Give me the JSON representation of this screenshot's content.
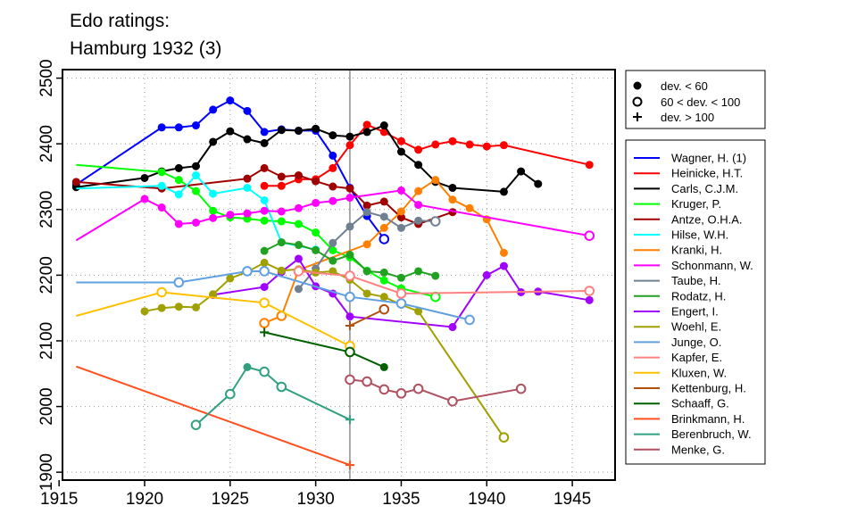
{
  "chart_data": {
    "type": "line",
    "title_lines": [
      "Edo ratings:",
      "Hamburg 1932 (3)"
    ],
    "xlim": [
      1915.2,
      1947.5
    ],
    "ylim": [
      1888,
      2513
    ],
    "xticks": [
      1915,
      1920,
      1925,
      1930,
      1935,
      1940,
      1945
    ],
    "yticks": [
      1900,
      2000,
      2100,
      2200,
      2300,
      2400,
      2500
    ],
    "event_year": 1932,
    "grid": "dotted",
    "marker_legend": [
      {
        "label": "dev. < 60",
        "marker": "filled"
      },
      {
        "label": "60 < dev. < 100",
        "marker": "open"
      },
      {
        "label": "dev. > 100",
        "marker": "plus"
      }
    ],
    "series": [
      {
        "name": "Wagner, H. (1)",
        "color": "#0000ff",
        "points": [
          [
            1916,
            2338,
            "f"
          ],
          [
            1921,
            2425,
            "f"
          ],
          [
            1922,
            2425,
            "f"
          ],
          [
            1923,
            2428,
            "f"
          ],
          [
            1924,
            2452,
            "f"
          ],
          [
            1925,
            2466,
            "f"
          ],
          [
            1926,
            2450,
            "f"
          ],
          [
            1927,
            2418,
            "f"
          ],
          [
            1928,
            2422,
            "f"
          ],
          [
            1929,
            2420,
            "f"
          ],
          [
            1930,
            2420,
            "f"
          ],
          [
            1931,
            2382,
            "f"
          ],
          [
            1932,
            2333,
            "f"
          ],
          [
            1933,
            2290,
            "f"
          ],
          [
            1934,
            2255,
            "o"
          ]
        ]
      },
      {
        "name": "Heinicke, H.T.",
        "color": "#ff0000",
        "points": [
          [
            1927,
            2336,
            "f"
          ],
          [
            1928,
            2336,
            "f"
          ],
          [
            1929,
            2346,
            "f"
          ],
          [
            1930,
            2346,
            "f"
          ],
          [
            1931,
            2363,
            "f"
          ],
          [
            1932,
            2398,
            "f"
          ],
          [
            1933,
            2429,
            "f"
          ],
          [
            1934,
            2418,
            "f"
          ],
          [
            1935,
            2404,
            "f"
          ],
          [
            1936,
            2391,
            "f"
          ],
          [
            1937,
            2399,
            "f"
          ],
          [
            1938,
            2404,
            "f"
          ],
          [
            1939,
            2399,
            "f"
          ],
          [
            1940,
            2396,
            "f"
          ],
          [
            1941,
            2398,
            "f"
          ],
          [
            1946,
            2368,
            "f"
          ]
        ]
      },
      {
        "name": "Carls, C.J.M.",
        "color": "#000000",
        "points": [
          [
            1916,
            2334,
            "f"
          ],
          [
            1920,
            2348,
            "f"
          ],
          [
            1921,
            2358,
            "f"
          ],
          [
            1922,
            2363,
            "f"
          ],
          [
            1923,
            2366,
            "f"
          ],
          [
            1924,
            2403,
            "f"
          ],
          [
            1925,
            2419,
            "f"
          ],
          [
            1926,
            2407,
            "f"
          ],
          [
            1927,
            2401,
            "f"
          ],
          [
            1928,
            2421,
            "f"
          ],
          [
            1929,
            2420,
            "f"
          ],
          [
            1930,
            2423,
            "f"
          ],
          [
            1931,
            2413,
            "f"
          ],
          [
            1932,
            2411,
            "f"
          ],
          [
            1933,
            2418,
            "f"
          ],
          [
            1934,
            2428,
            "f"
          ],
          [
            1935,
            2388,
            "f"
          ],
          [
            1936,
            2368,
            "f"
          ],
          [
            1937,
            2342,
            "f"
          ],
          [
            1938,
            2333,
            "f"
          ],
          [
            1941,
            2327,
            "f"
          ],
          [
            1942,
            2358,
            "f"
          ],
          [
            1943,
            2339,
            "f"
          ]
        ]
      },
      {
        "name": "Kruger, P.",
        "color": "#00ff00",
        "points": [
          [
            1916,
            2368,
            "n"
          ],
          [
            1921,
            2357,
            "f"
          ],
          [
            1922,
            2345,
            "f"
          ],
          [
            1923,
            2328,
            "f"
          ],
          [
            1924,
            2298,
            "f"
          ],
          [
            1925,
            2288,
            "f"
          ],
          [
            1926,
            2286,
            "f"
          ],
          [
            1927,
            2283,
            "f"
          ],
          [
            1928,
            2282,
            "f"
          ],
          [
            1929,
            2278,
            "f"
          ],
          [
            1930,
            2265,
            "f"
          ],
          [
            1931,
            2238,
            "f"
          ],
          [
            1932,
            2227,
            "f"
          ],
          [
            1933,
            2207,
            "f"
          ],
          [
            1934,
            2192,
            "f"
          ],
          [
            1935,
            2180,
            "f"
          ],
          [
            1937,
            2167,
            "o"
          ]
        ]
      },
      {
        "name": "Antze, O.H.A.",
        "color": "#a00000",
        "points": [
          [
            1916,
            2342,
            "f"
          ],
          [
            1921,
            2332,
            "f"
          ],
          [
            1926,
            2347,
            "f"
          ],
          [
            1927,
            2363,
            "f"
          ],
          [
            1928,
            2350,
            "f"
          ],
          [
            1929,
            2352,
            "f"
          ],
          [
            1930,
            2343,
            "f"
          ],
          [
            1931,
            2335,
            "f"
          ],
          [
            1932,
            2332,
            "f"
          ],
          [
            1933,
            2306,
            "f"
          ],
          [
            1934,
            2312,
            "f"
          ],
          [
            1935,
            2288,
            "f"
          ],
          [
            1936,
            2278,
            "f"
          ],
          [
            1938,
            2296,
            "f"
          ]
        ]
      },
      {
        "name": "Hilse, W.H.",
        "color": "#00ffff",
        "points": [
          [
            1916,
            2332,
            "n"
          ],
          [
            1921,
            2336,
            "f"
          ],
          [
            1922,
            2323,
            "f"
          ],
          [
            1923,
            2352,
            "f"
          ],
          [
            1924,
            2324,
            "f"
          ],
          [
            1926,
            2333,
            "f"
          ],
          [
            1927,
            2314,
            "f"
          ],
          [
            1928,
            2250,
            "f"
          ],
          [
            1930,
            2239,
            "f"
          ]
        ]
      },
      {
        "name": "Kranki, H.",
        "color": "#ff8000",
        "points": [
          [
            1927,
            2127,
            "o"
          ],
          [
            1928,
            2138,
            "o"
          ],
          [
            1929,
            2208,
            "f"
          ],
          [
            1933,
            2247,
            "f"
          ],
          [
            1934,
            2272,
            "f"
          ],
          [
            1935,
            2297,
            "f"
          ],
          [
            1936,
            2328,
            "f"
          ],
          [
            1937,
            2345,
            "f"
          ],
          [
            1938,
            2315,
            "f"
          ],
          [
            1939,
            2302,
            "f"
          ],
          [
            1940,
            2285,
            "f"
          ],
          [
            1941,
            2234,
            "f"
          ]
        ]
      },
      {
        "name": "Schonmann, W.",
        "color": "#ff00ff",
        "points": [
          [
            1916,
            2253,
            "n"
          ],
          [
            1920,
            2316,
            "f"
          ],
          [
            1921,
            2303,
            "f"
          ],
          [
            1922,
            2278,
            "f"
          ],
          [
            1923,
            2280,
            "f"
          ],
          [
            1924,
            2287,
            "f"
          ],
          [
            1925,
            2292,
            "f"
          ],
          [
            1926,
            2294,
            "f"
          ],
          [
            1927,
            2298,
            "f"
          ],
          [
            1928,
            2297,
            "f"
          ],
          [
            1929,
            2302,
            "f"
          ],
          [
            1930,
            2310,
            "f"
          ],
          [
            1931,
            2313,
            "f"
          ],
          [
            1932,
            2318,
            "f"
          ],
          [
            1935,
            2329,
            "f"
          ],
          [
            1936,
            2307,
            "f"
          ],
          [
            1946,
            2260,
            "o"
          ]
        ]
      },
      {
        "name": "Taube, H.",
        "color": "#708090",
        "points": [
          [
            1929,
            2179,
            "f"
          ],
          [
            1930,
            2210,
            "f"
          ],
          [
            1931,
            2249,
            "f"
          ],
          [
            1932,
            2274,
            "f"
          ],
          [
            1933,
            2296,
            "f"
          ],
          [
            1934,
            2289,
            "f"
          ],
          [
            1935,
            2272,
            "f"
          ],
          [
            1936,
            2283,
            "f"
          ],
          [
            1937,
            2282,
            "o"
          ]
        ]
      },
      {
        "name": "Rodatz, H.",
        "color": "#22a022",
        "points": [
          [
            1927,
            2237,
            "f"
          ],
          [
            1928,
            2250,
            "f"
          ],
          [
            1929,
            2246,
            "f"
          ],
          [
            1930,
            2238,
            "f"
          ],
          [
            1931,
            2222,
            "f"
          ],
          [
            1932,
            2231,
            "f"
          ],
          [
            1933,
            2206,
            "f"
          ],
          [
            1934,
            2204,
            "f"
          ],
          [
            1935,
            2196,
            "f"
          ],
          [
            1936,
            2206,
            "f"
          ],
          [
            1937,
            2199,
            "f"
          ]
        ]
      },
      {
        "name": "Engert, I.",
        "color": "#a000ff",
        "points": [
          [
            1924,
            2170,
            "f"
          ],
          [
            1927,
            2182,
            "f"
          ],
          [
            1928,
            2205,
            "f"
          ],
          [
            1929,
            2225,
            "f"
          ],
          [
            1930,
            2183,
            "f"
          ],
          [
            1931,
            2172,
            "f"
          ],
          [
            1932,
            2137,
            "f"
          ],
          [
            1938,
            2121,
            "f"
          ],
          [
            1940,
            2200,
            "f"
          ],
          [
            1941,
            2214,
            "f"
          ],
          [
            1942,
            2174,
            "f"
          ],
          [
            1943,
            2175,
            "f"
          ],
          [
            1946,
            2162,
            "f"
          ]
        ]
      },
      {
        "name": "Woehl, E.",
        "color": "#a0a000",
        "points": [
          [
            1920,
            2145,
            "f"
          ],
          [
            1921,
            2150,
            "f"
          ],
          [
            1922,
            2152,
            "f"
          ],
          [
            1923,
            2151,
            "f"
          ],
          [
            1924,
            2171,
            "f"
          ],
          [
            1925,
            2195,
            "f"
          ],
          [
            1926,
            2205,
            "f"
          ],
          [
            1927,
            2219,
            "f"
          ],
          [
            1928,
            2207,
            "f"
          ],
          [
            1929,
            2209,
            "f"
          ],
          [
            1930,
            2204,
            "f"
          ],
          [
            1931,
            2206,
            "f"
          ],
          [
            1932,
            2193,
            "f"
          ],
          [
            1933,
            2172,
            "f"
          ],
          [
            1934,
            2167,
            "f"
          ],
          [
            1935,
            2155,
            "f"
          ],
          [
            1936,
            2145,
            "f"
          ],
          [
            1941,
            1953,
            "o"
          ]
        ]
      },
      {
        "name": "Junge, O.",
        "color": "#60a0e0",
        "points": [
          [
            1916,
            2189,
            "n"
          ],
          [
            1922,
            2189,
            "o"
          ],
          [
            1926,
            2206,
            "o"
          ],
          [
            1927,
            2206,
            "o"
          ],
          [
            1932,
            2167,
            "o"
          ],
          [
            1935,
            2157,
            "o"
          ],
          [
            1939,
            2132,
            "o"
          ]
        ]
      },
      {
        "name": "Kapfer, E.",
        "color": "#ff8080",
        "points": [
          [
            1929,
            2206,
            "o"
          ],
          [
            1932,
            2199,
            "o"
          ],
          [
            1935,
            2172,
            "o"
          ],
          [
            1946,
            2176,
            "o"
          ]
        ]
      },
      {
        "name": "Kluxen, W.",
        "color": "#ffc000",
        "points": [
          [
            1916,
            2138,
            "n"
          ],
          [
            1921,
            2174,
            "o"
          ],
          [
            1927,
            2158,
            "o"
          ],
          [
            1932,
            2092,
            "o"
          ]
        ]
      },
      {
        "name": "Kettenburg, H.",
        "color": "#b05010",
        "points": [
          [
            1932,
            2123,
            "p"
          ],
          [
            1934,
            2148,
            "o"
          ]
        ]
      },
      {
        "name": "Schaaff, G.",
        "color": "#006000",
        "points": [
          [
            1927,
            2113,
            "p"
          ],
          [
            1932,
            2083,
            "o"
          ],
          [
            1934,
            2060,
            "f"
          ]
        ]
      },
      {
        "name": "Brinkmann, H.",
        "color": "#ff5020",
        "points": [
          [
            1916,
            2061,
            "n"
          ],
          [
            1932,
            1911,
            "p"
          ]
        ]
      },
      {
        "name": "Berenbruch, W.",
        "color": "#30a080",
        "points": [
          [
            1923,
            1972,
            "o"
          ],
          [
            1925,
            2019,
            "o"
          ],
          [
            1926,
            2060,
            "f"
          ],
          [
            1927,
            2053,
            "o"
          ],
          [
            1928,
            2030,
            "o"
          ],
          [
            1932,
            1980,
            "p"
          ]
        ]
      },
      {
        "name": "Menke, G.",
        "color": "#b05060",
        "points": [
          [
            1932,
            2041,
            "o"
          ],
          [
            1933,
            2038,
            "o"
          ],
          [
            1934,
            2026,
            "o"
          ],
          [
            1935,
            2020,
            "o"
          ],
          [
            1936,
            2027,
            "o"
          ],
          [
            1938,
            2008,
            "o"
          ],
          [
            1942,
            2027,
            "o"
          ]
        ]
      }
    ]
  }
}
